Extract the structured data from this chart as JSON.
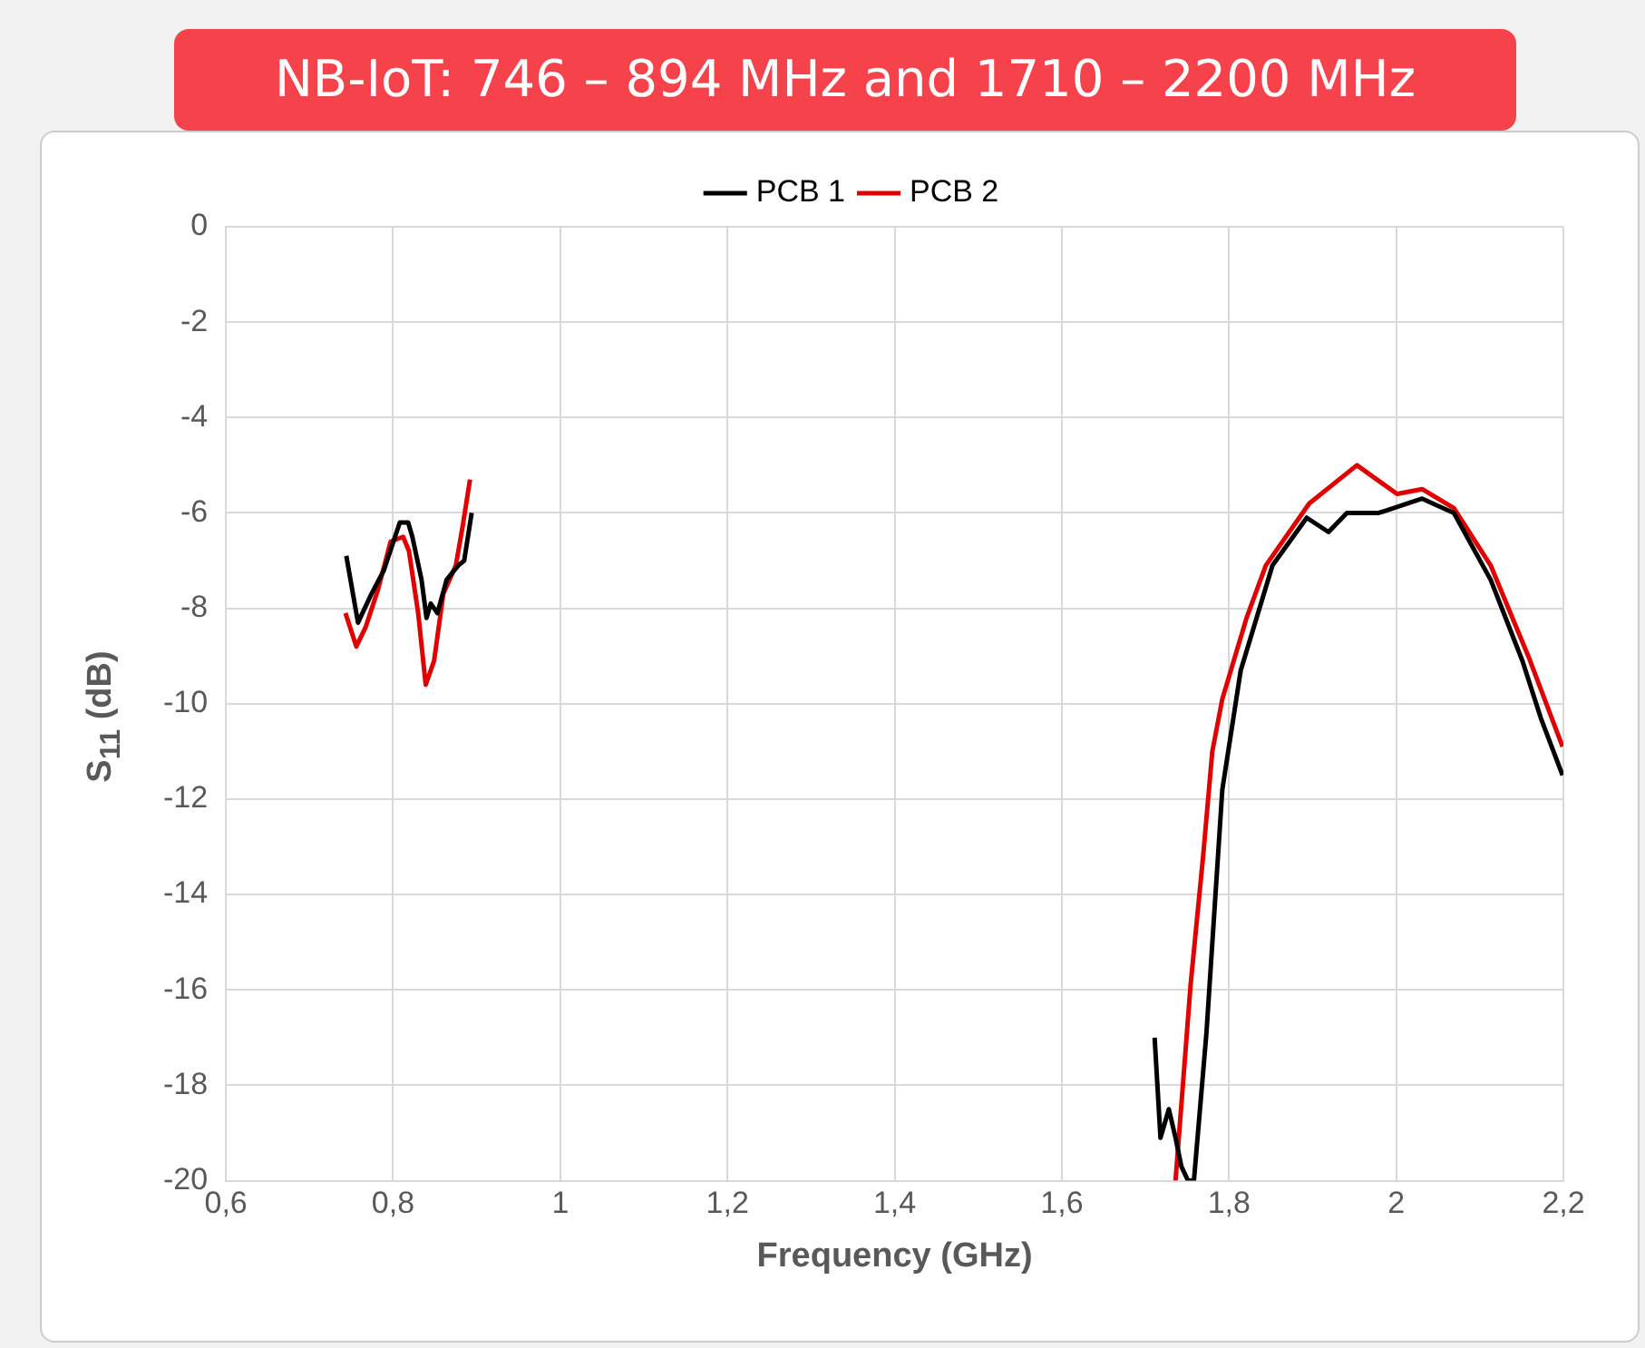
{
  "chart_data": {
    "type": "line",
    "title": "NB-IoT: 746 – 894 MHz and 1710 – 2200 MHz",
    "xlabel": "Frequency (GHz)",
    "ylabel": "S$_{11}$ (dB)",
    "xlim": [
      0.6,
      2.2
    ],
    "xticks": [
      {
        "value": 0.6,
        "label": "0,6"
      },
      {
        "value": 0.8,
        "label": "0,8"
      },
      1,
      {
        "value": 1.2,
        "label": "1,2"
      },
      {
        "value": 1.4,
        "label": "1,4"
      },
      {
        "value": 1.6,
        "label": "1,6"
      },
      {
        "value": 1.8,
        "label": "1,8"
      },
      2,
      {
        "value": 2.2,
        "label": "2,2"
      }
    ],
    "ylim": [
      -20,
      0
    ],
    "yticks": [
      -20,
      -18,
      -16,
      -14,
      -12,
      -10,
      -8,
      -6,
      -4,
      -2,
      0
    ],
    "grid": true,
    "legend": "top",
    "marker": "none",
    "line_style": "solid",
    "series": [
      {
        "name": "PCB 1",
        "color": "#000000",
        "x": [
          0.744,
          0.758,
          0.774,
          0.789,
          0.808,
          0.818,
          0.823,
          0.834,
          0.84,
          0.845,
          0.853,
          0.864,
          0.878,
          0.885,
          0.894,
          1.3,
          1.711,
          1.718,
          1.728,
          1.736,
          1.743,
          1.751,
          1.758,
          1.773,
          1.792,
          1.814,
          1.852,
          1.893,
          1.919,
          1.941,
          1.979,
          2.031,
          2.069,
          2.113,
          2.151,
          2.173,
          2.199
        ],
        "values": [
          -6.9,
          -8.3,
          -7.7,
          -7.2,
          -6.2,
          -6.2,
          -6.5,
          -7.4,
          -8.2,
          -7.9,
          -8.1,
          -7.4,
          -7.1,
          -7.0,
          -6.0,
          null,
          -17.0,
          -19.1,
          -18.5,
          -19.1,
          -19.7,
          -20.0,
          -20.0,
          -16.9,
          -11.8,
          -9.3,
          -7.1,
          -6.1,
          -6.4,
          -6.0,
          -6.0,
          -5.7,
          -6.0,
          -7.4,
          -9.1,
          -10.3,
          -11.5
        ]
      },
      {
        "name": "PCB 2",
        "color": "#e00000",
        "x": [
          0.743,
          0.756,
          0.767,
          0.782,
          0.797,
          0.812,
          0.819,
          0.83,
          0.839,
          0.849,
          0.86,
          0.875,
          0.883,
          0.892,
          1.3,
          1.736,
          1.754,
          1.769,
          1.78,
          1.792,
          1.821,
          1.844,
          1.896,
          1.953,
          2.001,
          2.031,
          2.069,
          2.113,
          2.158,
          2.199
        ],
        "values": [
          -8.1,
          -8.8,
          -8.4,
          -7.6,
          -6.6,
          -6.5,
          -6.8,
          -8.1,
          -9.6,
          -9.1,
          -7.7,
          -7.1,
          -6.3,
          -5.3,
          null,
          -20.0,
          -15.9,
          -13.2,
          -11.0,
          -9.9,
          -8.2,
          -7.1,
          -5.8,
          -5.0,
          -5.6,
          -5.5,
          -5.9,
          -7.1,
          -9.0,
          -10.9
        ]
      }
    ]
  }
}
